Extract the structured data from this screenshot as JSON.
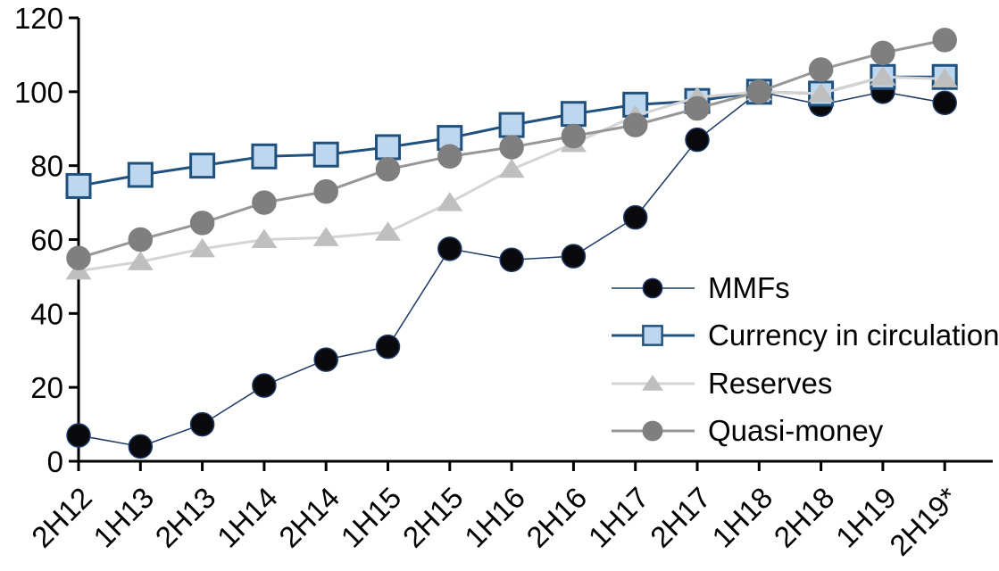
{
  "chart_data": {
    "type": "line",
    "title": "",
    "xlabel": "",
    "ylabel": "",
    "ylim": [
      0,
      120
    ],
    "yticks": [
      0,
      20,
      40,
      60,
      80,
      100,
      120
    ],
    "grid": false,
    "legend_position": "inside-right",
    "axis_color": "#000000",
    "categories": [
      "2H12",
      "1H13",
      "2H13",
      "1H14",
      "2H14",
      "1H15",
      "2H15",
      "1H16",
      "2H16",
      "1H17",
      "2H17",
      "1H18",
      "2H18",
      "1H19",
      "2H19*"
    ],
    "series": [
      {
        "name": "MMFs",
        "marker": "circle",
        "marker_fill": "#0a0a0d",
        "marker_stroke": "#1f3864",
        "line_color": "#1f3864",
        "line_width": 1.5,
        "values": [
          7,
          4,
          10,
          20.5,
          27.5,
          31,
          57.5,
          54.5,
          55.5,
          66,
          87,
          100,
          96.5,
          100,
          97
        ]
      },
      {
        "name": "Currency in circulation",
        "marker": "square",
        "marker_fill": "#bdd7ee",
        "marker_stroke": "#20507e",
        "line_color": "#20507e",
        "line_width": 3,
        "values": [
          74.5,
          77.5,
          80,
          82.5,
          83,
          85,
          87.5,
          91,
          94,
          96.5,
          97.5,
          100,
          99.5,
          104,
          104
        ]
      },
      {
        "name": "Reserves",
        "marker": "triangle",
        "marker_fill": "#bfbfbf",
        "marker_stroke": "#bfbfbf",
        "line_color": "#d4d4d4",
        "line_width": 3,
        "values": [
          51.5,
          54,
          57.5,
          60,
          60.5,
          62,
          70,
          79,
          86,
          93.5,
          98.5,
          100,
          99.5,
          104,
          103.5
        ]
      },
      {
        "name": "Quasi-money",
        "marker": "circle",
        "marker_fill": "#7f7f7f",
        "marker_stroke": "#7f7f7f",
        "line_color": "#979797",
        "line_width": 3,
        "values": [
          55,
          60,
          64.5,
          70,
          73,
          79,
          82.5,
          85,
          88,
          91,
          95.5,
          100,
          106,
          110.5,
          114
        ]
      }
    ]
  }
}
